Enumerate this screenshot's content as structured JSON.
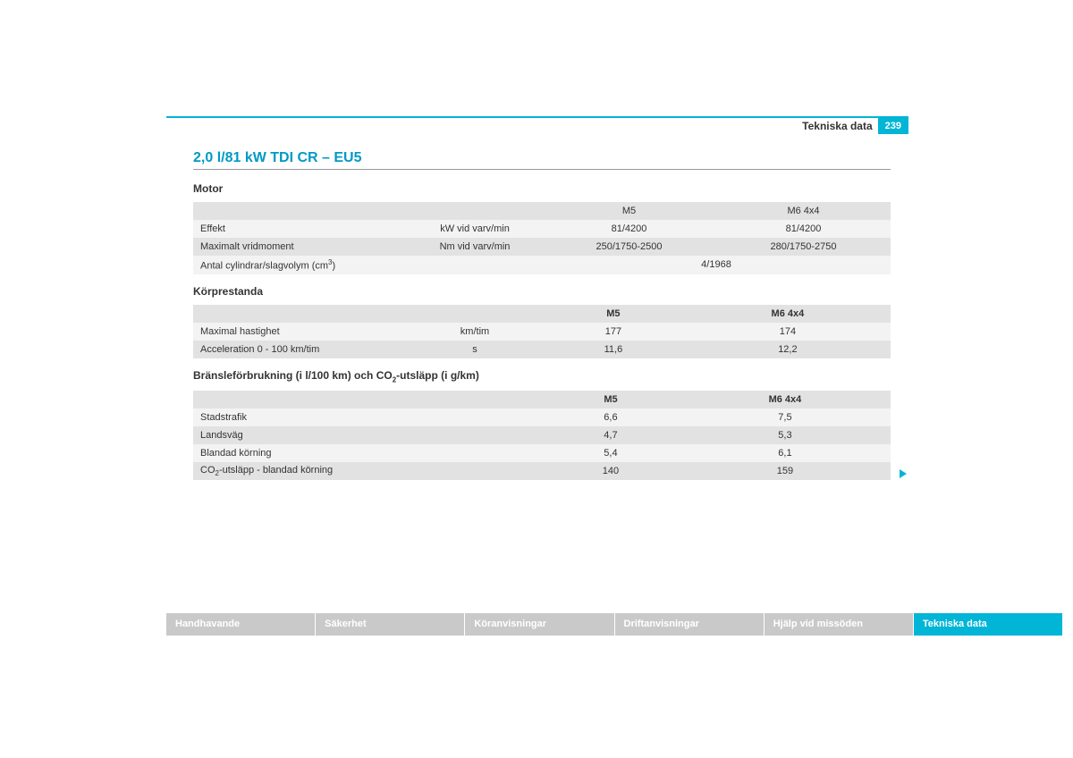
{
  "header": {
    "section_title": "Tekniska data",
    "page_number": "239"
  },
  "main_heading": "2,0 l/81 kW TDI CR – EU5",
  "colors": {
    "accent": "#00b5d6",
    "heading": "#0099c6",
    "row_gray": "#e2e2e2",
    "row_light": "#f3f3f3",
    "tab_inactive": "#c9c9c9",
    "text": "#333333"
  },
  "tables": {
    "motor": {
      "title": "Motor",
      "columns": [
        "M5",
        "M6 4x4"
      ],
      "rows": [
        {
          "label": "Effekt",
          "unit": "kW vid varv/min",
          "values": [
            "81/4200",
            "81/4200"
          ]
        },
        {
          "label": "Maximalt vridmoment",
          "unit": "Nm vid varv/min",
          "values": [
            "250/1750-2500",
            "280/1750-2750"
          ]
        },
        {
          "label_html": "Antal cylindrar/slagvolym (cm³)",
          "label": "Antal cylindrar/slagvolym (cm",
          "label_sup": "3",
          "label_after": ")",
          "merged_value": "4/1968"
        }
      ]
    },
    "korprestanda": {
      "title": "Körprestanda",
      "columns": [
        "M5",
        "M6 4x4"
      ],
      "rows": [
        {
          "label": "Maximal hastighet",
          "unit": "km/tim",
          "values": [
            "177",
            "174"
          ]
        },
        {
          "label": "Acceleration 0 - 100 km/tim",
          "unit": "s",
          "values": [
            "11,6",
            "12,2"
          ]
        }
      ]
    },
    "bransle": {
      "title_pre": "Bränsleförbrukning (i l/100 km) och CO",
      "title_sub": "2",
      "title_post": "-utsläpp (i g/km)",
      "columns": [
        "M5",
        "M6 4x4"
      ],
      "rows": [
        {
          "label": "Stadstrafik",
          "values": [
            "6,6",
            "7,5"
          ]
        },
        {
          "label": "Landsväg",
          "values": [
            "4,7",
            "5,3"
          ]
        },
        {
          "label": "Blandad körning",
          "values": [
            "5,4",
            "6,1"
          ]
        },
        {
          "label_pre": "CO",
          "label_sub": "2",
          "label_post": "-utsläpp - blandad körning",
          "values": [
            "140",
            "159"
          ]
        }
      ]
    }
  },
  "tabs": [
    {
      "label": "Handhavande",
      "active": false
    },
    {
      "label": "Säkerhet",
      "active": false
    },
    {
      "label": "Köranvisningar",
      "active": false
    },
    {
      "label": "Driftanvisningar",
      "active": false
    },
    {
      "label": "Hjälp vid missöden",
      "active": false
    },
    {
      "label": "Tekniska data",
      "active": true
    }
  ]
}
